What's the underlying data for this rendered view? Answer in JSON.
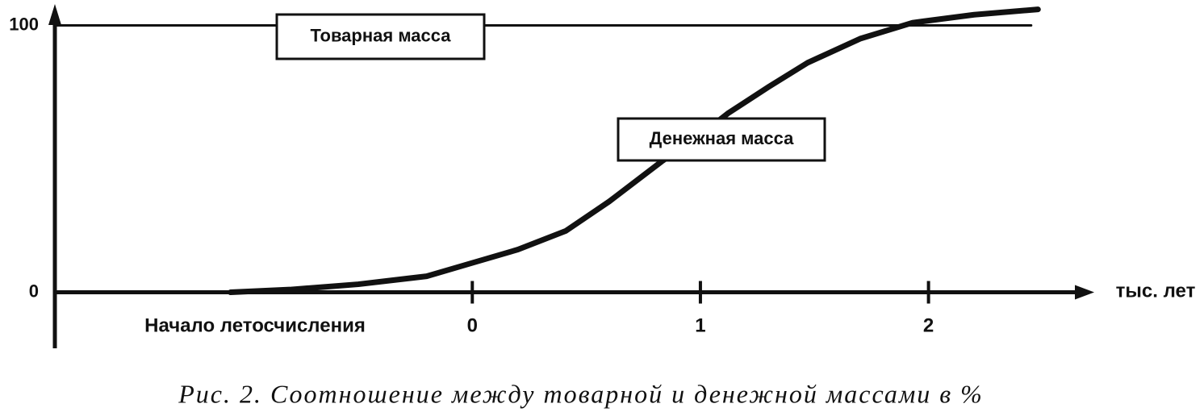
{
  "chart_data": {
    "type": "line",
    "title": "Рис. 2. Соотношение между товарной и денежной массами в %",
    "x_label": "тыс. лет",
    "annotation": "Начало летосчисления",
    "xlim": [
      -1.83,
      2.67
    ],
    "xticks": [
      0,
      1,
      2
    ],
    "ylim": [
      -21,
      108
    ],
    "yticks": [
      0,
      100
    ],
    "series": [
      {
        "name": "Товарная масса",
        "color": "#111111",
        "x": [
          -1.83,
          2.45
        ],
        "values": [
          100,
          100
        ]
      },
      {
        "name": "Денежная масса",
        "color": "#111111",
        "x": [
          -1.06,
          -0.8,
          -0.5,
          -0.2,
          0,
          0.2,
          0.41,
          0.6,
          0.83,
          1.0,
          1.12,
          1.3,
          1.47,
          1.7,
          1.93,
          2.2,
          2.48
        ],
        "values": [
          0,
          1,
          3,
          6,
          11,
          16,
          23,
          34,
          49,
          59,
          67,
          77,
          86,
          95,
          101,
          104,
          106
        ]
      }
    ]
  }
}
